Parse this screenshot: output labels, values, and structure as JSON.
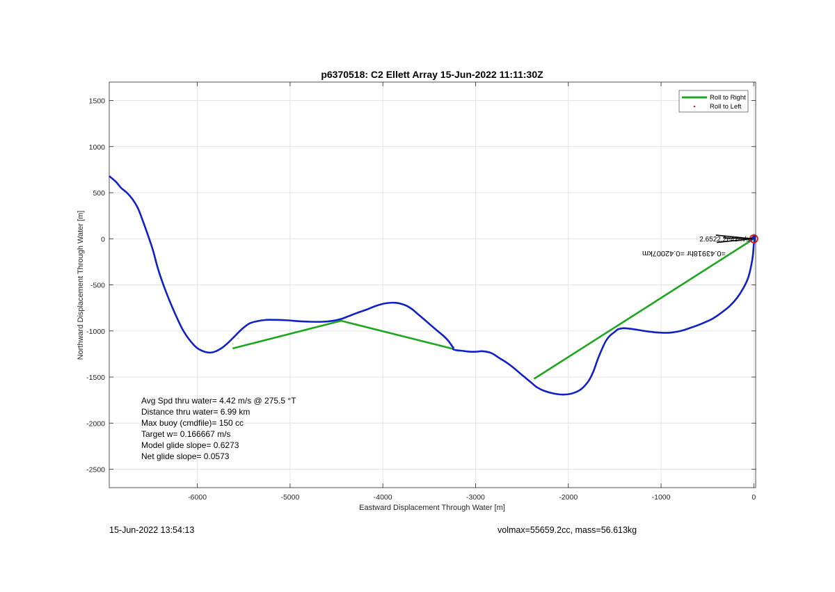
{
  "chart_data": {
    "type": "line",
    "title": "p6370518: C2 Ellett Array 15-Jun-2022 11:11:30Z",
    "xlabel": "Eastward Displacement Through Water [m]",
    "ylabel": "Northward Displacement Through Water [m]",
    "xlim": [
      -6950,
      20
    ],
    "ylim": [
      -2700,
      1700
    ],
    "xticks": [
      -6000,
      -5000,
      -4000,
      -3000,
      -2000,
      -1000,
      0
    ],
    "yticks": [
      -2500,
      -2000,
      -1500,
      -1000,
      -500,
      0,
      500,
      1000,
      1500
    ],
    "grid": true,
    "legend_position": "top-right",
    "legend": [
      {
        "label": "Roll to Right",
        "color": "#1ea61e"
      },
      {
        "label": "Roll to Left",
        "color": "#e02020"
      }
    ],
    "series": [
      {
        "name": "Roll to Right",
        "color": "#1ea61e",
        "segments": [
          {
            "x": [
              -5620,
              -4450,
              -3240
            ],
            "y": [
              -1190,
              -890,
              -1195
            ]
          },
          {
            "x": [
              -2370,
              0
            ],
            "y": [
              -1520,
              0
            ]
          }
        ]
      },
      {
        "color": "#1020c8",
        "x": [
          -6950,
          -6880,
          -6820,
          -6760,
          -6700,
          -6640,
          -6590,
          -6540,
          -6480,
          -6420,
          -6340,
          -6250,
          -6150,
          -6040,
          -5960,
          -5870,
          -5800,
          -5730,
          -5660,
          -5590,
          -5520,
          -5440,
          -5360,
          -5260,
          -5150,
          -5020,
          -4900,
          -4780,
          -4650,
          -4540,
          -4450,
          -4370,
          -4280,
          -4180,
          -4080,
          -3970,
          -3860,
          -3760,
          -3690,
          -3630,
          -3560,
          -3480,
          -3410,
          -3350,
          -3300,
          -3270,
          -3250,
          -3240,
          -3240,
          -3200,
          -3150,
          -3060,
          -2990,
          -2920,
          -2830,
          -2750,
          -2670,
          -2590,
          -2520,
          -2460,
          -2400,
          -2340,
          -2260,
          -2150,
          -2050,
          -1950,
          -1860,
          -1780,
          -1730,
          -1680,
          -1630,
          -1590,
          -1550,
          -1500,
          -1470,
          -1440,
          -1400,
          -1340,
          -1270,
          -1180,
          -1060,
          -920,
          -790,
          -680,
          -560,
          -450,
          -360,
          -260,
          -180,
          -110,
          -60,
          -30,
          -10,
          0,
          10,
          5,
          0,
          -20,
          -40,
          -20,
          0
        ],
        "y": [
          680,
          620,
          550,
          500,
          430,
          330,
          200,
          60,
          -120,
          -340,
          -570,
          -790,
          -1000,
          -1150,
          -1210,
          -1235,
          -1220,
          -1180,
          -1120,
          -1050,
          -980,
          -920,
          -895,
          -880,
          -880,
          -885,
          -895,
          -900,
          -900,
          -890,
          -870,
          -840,
          -805,
          -770,
          -730,
          -700,
          -695,
          -720,
          -760,
          -810,
          -870,
          -940,
          -1000,
          -1050,
          -1100,
          -1140,
          -1170,
          -1180,
          -1200,
          -1210,
          -1215,
          -1225,
          -1225,
          -1220,
          -1240,
          -1290,
          -1340,
          -1400,
          -1460,
          -1510,
          -1560,
          -1610,
          -1650,
          -1680,
          -1690,
          -1675,
          -1630,
          -1540,
          -1440,
          -1300,
          -1180,
          -1100,
          -1050,
          -1010,
          -985,
          -975,
          -970,
          -975,
          -985,
          -1000,
          -1015,
          -1020,
          -1000,
          -965,
          -920,
          -870,
          -810,
          -730,
          -640,
          -530,
          -420,
          -300,
          -180,
          -60,
          0,
          40,
          30,
          0,
          -20,
          10,
          0
        ]
      }
    ],
    "annotation_text": "2.6522.2e42m/s",
    "annotation_text2": "=0.43918hr =0.42007km",
    "stats": [
      "Avg Spd thru water=  4.42 m/s @ 275.5 °T",
      "Distance thru water=  6.99 km",
      "Max buoy (cmdfile)= 150 cc",
      "Target w= 0.166667 m/s",
      "Model glide slope= 0.6273",
      "Net glide slope= 0.0573"
    ]
  },
  "footer": {
    "timestamp": "15-Jun-2022 13:54:13",
    "volume_mass": "volmax=55659.2cc, mass=56.613kg"
  }
}
